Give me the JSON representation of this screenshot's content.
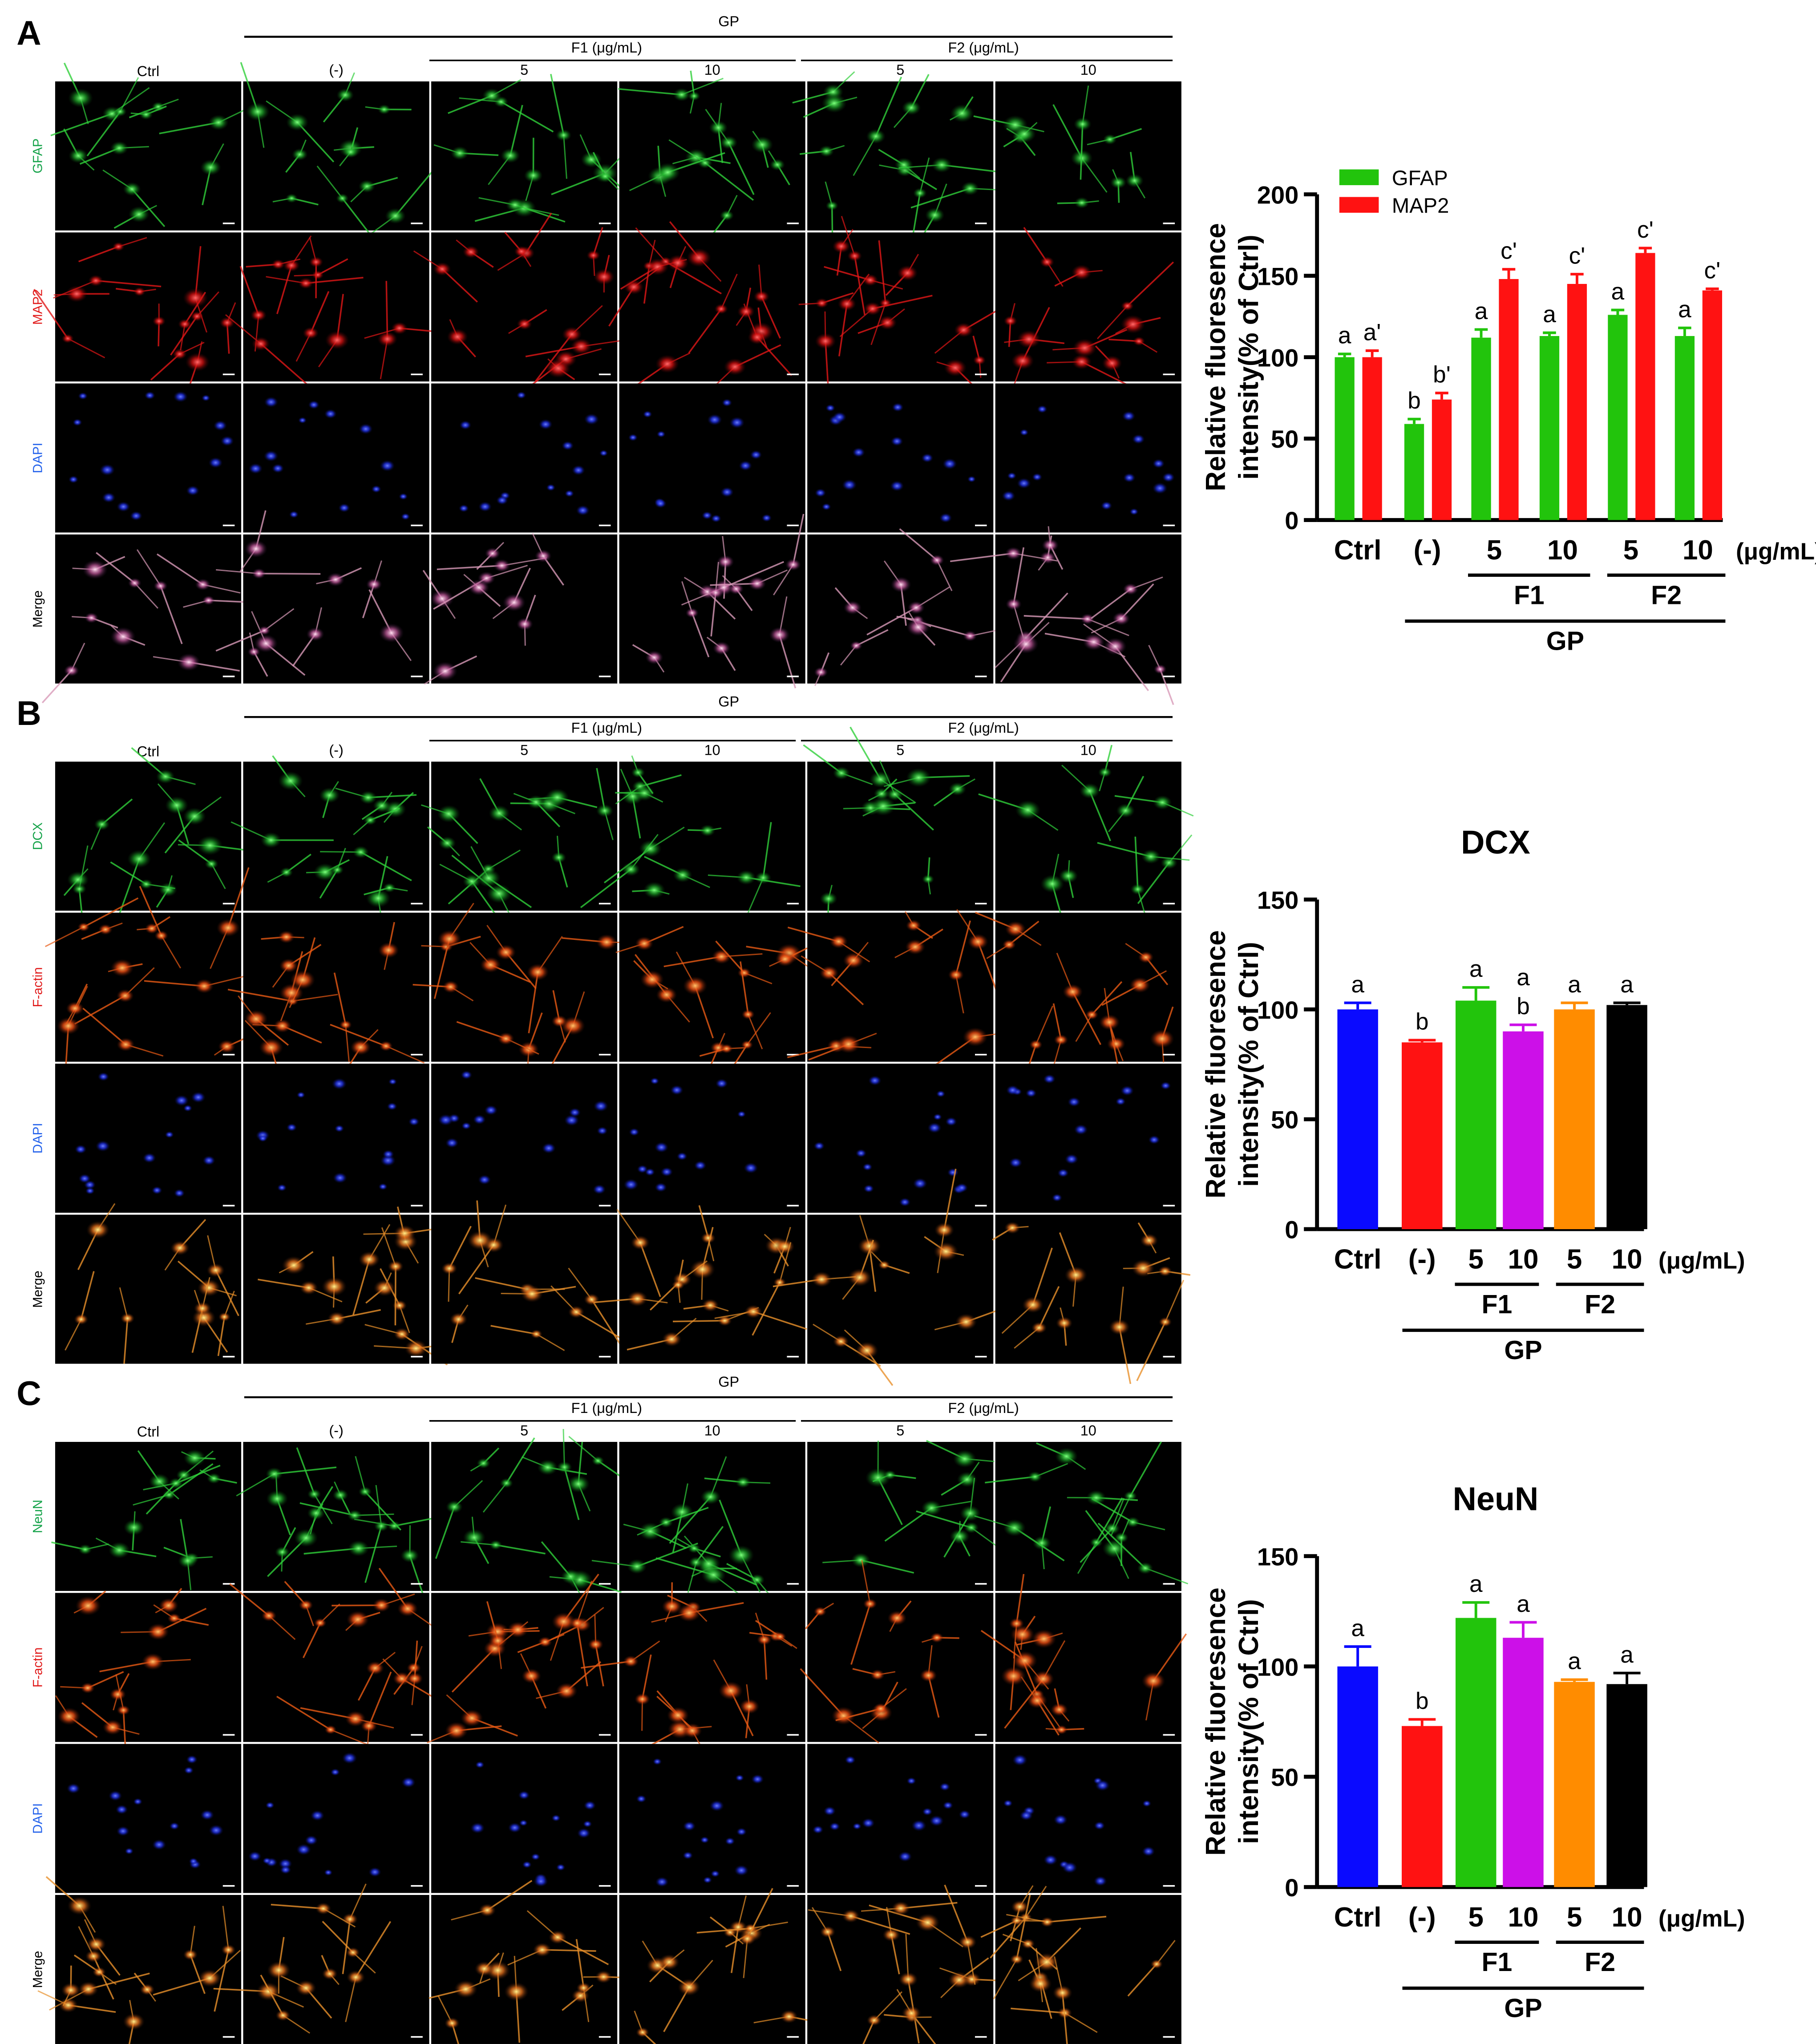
{
  "figure": {
    "panels": [
      {
        "letter": "A",
        "group_label": "GP",
        "sub_labels": [
          "F1 (μg/mL)",
          "F2 (μg/mL)"
        ],
        "col_labels": [
          "Ctrl",
          "(-)",
          "5",
          "10",
          "5",
          "10"
        ],
        "rows": [
          {
            "label": "GFAP",
            "color": "#16a34a",
            "channel": "green"
          },
          {
            "label": "MAP2",
            "color": "#e11d1d",
            "channel": "red"
          },
          {
            "label": "DAPI",
            "color": "#2563eb",
            "channel": "blue"
          },
          {
            "label": "Merge",
            "color": "#000000",
            "channel": "merge"
          }
        ]
      },
      {
        "letter": "B",
        "group_label": "GP",
        "sub_labels": [
          "F1 (μg/mL)",
          "F2 (μg/mL)"
        ],
        "col_labels": [
          "Ctrl",
          "(-)",
          "5",
          "10",
          "5",
          "10"
        ],
        "rows": [
          {
            "label": "DCX",
            "color": "#16a34a",
            "channel": "green"
          },
          {
            "label": "F-actin",
            "color": "#e11d1d",
            "channel": "actin"
          },
          {
            "label": "DAPI",
            "color": "#2563eb",
            "channel": "blue"
          },
          {
            "label": "Merge",
            "color": "#000000",
            "channel": "merge2"
          }
        ]
      },
      {
        "letter": "C",
        "group_label": "GP",
        "sub_labels": [
          "F1 (μg/mL)",
          "F2 (μg/mL)"
        ],
        "col_labels": [
          "Ctrl",
          "(-)",
          "5",
          "10",
          "5",
          "10"
        ],
        "rows": [
          {
            "label": "NeuN",
            "color": "#16a34a",
            "channel": "green"
          },
          {
            "label": "F-actin",
            "color": "#e11d1d",
            "channel": "actin"
          },
          {
            "label": "DAPI",
            "color": "#2563eb",
            "channel": "blue"
          },
          {
            "label": "Merge",
            "color": "#000000",
            "channel": "merge2"
          }
        ]
      }
    ]
  },
  "chart_data": [
    {
      "type": "bar",
      "title": "",
      "ylabel": "Relative fluoresence intensity(% of Ctrl)",
      "ylabel_lines": [
        "Relative fluoresence",
        "intensity(% of Ctrl)"
      ],
      "ylim": [
        0,
        200
      ],
      "yticks": [
        0,
        50,
        100,
        150,
        200
      ],
      "categories": [
        "Ctrl",
        "(-)",
        "5",
        "10",
        "5",
        "10"
      ],
      "unit_label": "(μg/mL)",
      "groups": {
        "sub": [
          "F1",
          "F2"
        ],
        "main": "GP"
      },
      "legend_position": "top-left",
      "series": [
        {
          "name": "GFAP",
          "color": "#22c40c",
          "values": [
            100,
            59,
            112,
            113,
            126,
            113
          ],
          "errors": [
            2,
            3,
            5,
            2,
            3,
            5
          ],
          "letters": [
            "a",
            "b",
            "a",
            "a",
            "a",
            "a"
          ]
        },
        {
          "name": "MAP2",
          "color": "#ff1212",
          "values": [
            100,
            74,
            148,
            145,
            164,
            141
          ],
          "errors": [
            4,
            4,
            6,
            6,
            3,
            1
          ],
          "letters": [
            "a'",
            "b'",
            "c'",
            "c'",
            "c'",
            "c'"
          ]
        }
      ]
    },
    {
      "type": "bar",
      "title": "DCX",
      "ylabel": "Relative fluoresence intensity(% of Ctrl)",
      "ylabel_lines": [
        "Relative fluoresence",
        "intensity(% of Ctrl)"
      ],
      "ylim": [
        0,
        150
      ],
      "yticks": [
        0,
        50,
        100,
        150
      ],
      "categories": [
        "Ctrl",
        "(-)",
        "5",
        "10",
        "5",
        "10"
      ],
      "unit_label": "(μg/mL)",
      "groups": {
        "sub": [
          "F1",
          "F2"
        ],
        "main": "GP"
      },
      "colors": [
        "#0a0aff",
        "#ff1212",
        "#22c40c",
        "#cc10e8",
        "#ff8c00",
        "#000000"
      ],
      "values": [
        100,
        85,
        104,
        90,
        100,
        102
      ],
      "errors": [
        3,
        1,
        6,
        3,
        3,
        1
      ],
      "letters": [
        "a",
        "b",
        "a",
        "a\nb",
        "a",
        "a"
      ]
    },
    {
      "type": "bar",
      "title": "NeuN",
      "ylabel": "Relative fluoresence intensity(% of Ctrl)",
      "ylabel_lines": [
        "Relative fluoresence",
        "intensity(% of Ctrl)"
      ],
      "ylim": [
        0,
        150
      ],
      "yticks": [
        0,
        50,
        100,
        150
      ],
      "categories": [
        "Ctrl",
        "(-)",
        "5",
        "10",
        "5",
        "10"
      ],
      "unit_label": "(μg/mL)",
      "groups": {
        "sub": [
          "F1",
          "F2"
        ],
        "main": "GP"
      },
      "colors": [
        "#0a0aff",
        "#ff1212",
        "#22c40c",
        "#cc10e8",
        "#ff8c00",
        "#000000"
      ],
      "values": [
        100,
        73,
        122,
        113,
        93,
        92
      ],
      "errors": [
        9,
        3,
        7,
        7,
        1,
        5
      ],
      "letters": [
        "a",
        "b",
        "a",
        "a",
        "a",
        "a"
      ]
    }
  ]
}
